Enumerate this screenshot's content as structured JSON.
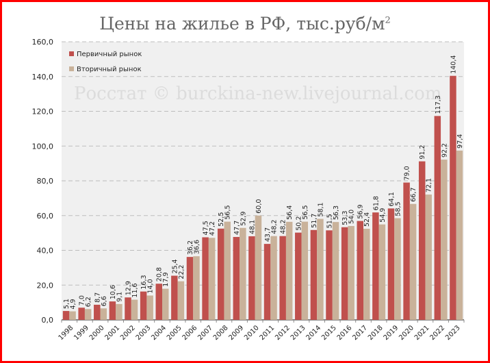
{
  "chart_data": {
    "type": "bar",
    "title": "Цены на жилье в РФ, тыс.руб/м",
    "title_superscript": "2",
    "watermark": "Росстат © burckina-new.livejournal.com",
    "categories": [
      "1998",
      "1999",
      "2000",
      "2001",
      "2002",
      "2003",
      "2004",
      "2005",
      "2006",
      "2007",
      "2008",
      "2009",
      "2010",
      "2011",
      "2012",
      "2013",
      "2014",
      "2015",
      "2016",
      "2017",
      "2018",
      "2019",
      "2020",
      "2021",
      "2022",
      "2023"
    ],
    "series": [
      {
        "name": "Первичный рынок",
        "color": "#c0504d",
        "values": [
          5.1,
          7.0,
          8.7,
          10.6,
          12.9,
          16.3,
          20.8,
          25.4,
          36.2,
          47.5,
          52.5,
          47.7,
          48.1,
          43.7,
          48.2,
          50.2,
          51.7,
          51.5,
          53.3,
          56.9,
          61.8,
          64.1,
          79.0,
          91.2,
          117.3,
          140.4
        ]
      },
      {
        "name": "Вторичный рынок",
        "color": "#c9b29a",
        "values": [
          4.9,
          6.2,
          6.6,
          9.1,
          11.6,
          14.0,
          17.9,
          22.2,
          36.6,
          47.2,
          56.5,
          52.9,
          60.0,
          48.2,
          56.4,
          56.5,
          58.1,
          56.3,
          54.0,
          52.4,
          54.9,
          58.5,
          66.7,
          72.1,
          92.2,
          97.4
        ]
      }
    ],
    "yticks": [
      "0,0",
      "20,0",
      "40,0",
      "60,0",
      "80,0",
      "100,0",
      "120,0",
      "140,0",
      "160,0"
    ],
    "ylim": [
      0,
      160
    ],
    "grid": true,
    "legend": "top-left",
    "xlabel": "",
    "ylabel": ""
  }
}
